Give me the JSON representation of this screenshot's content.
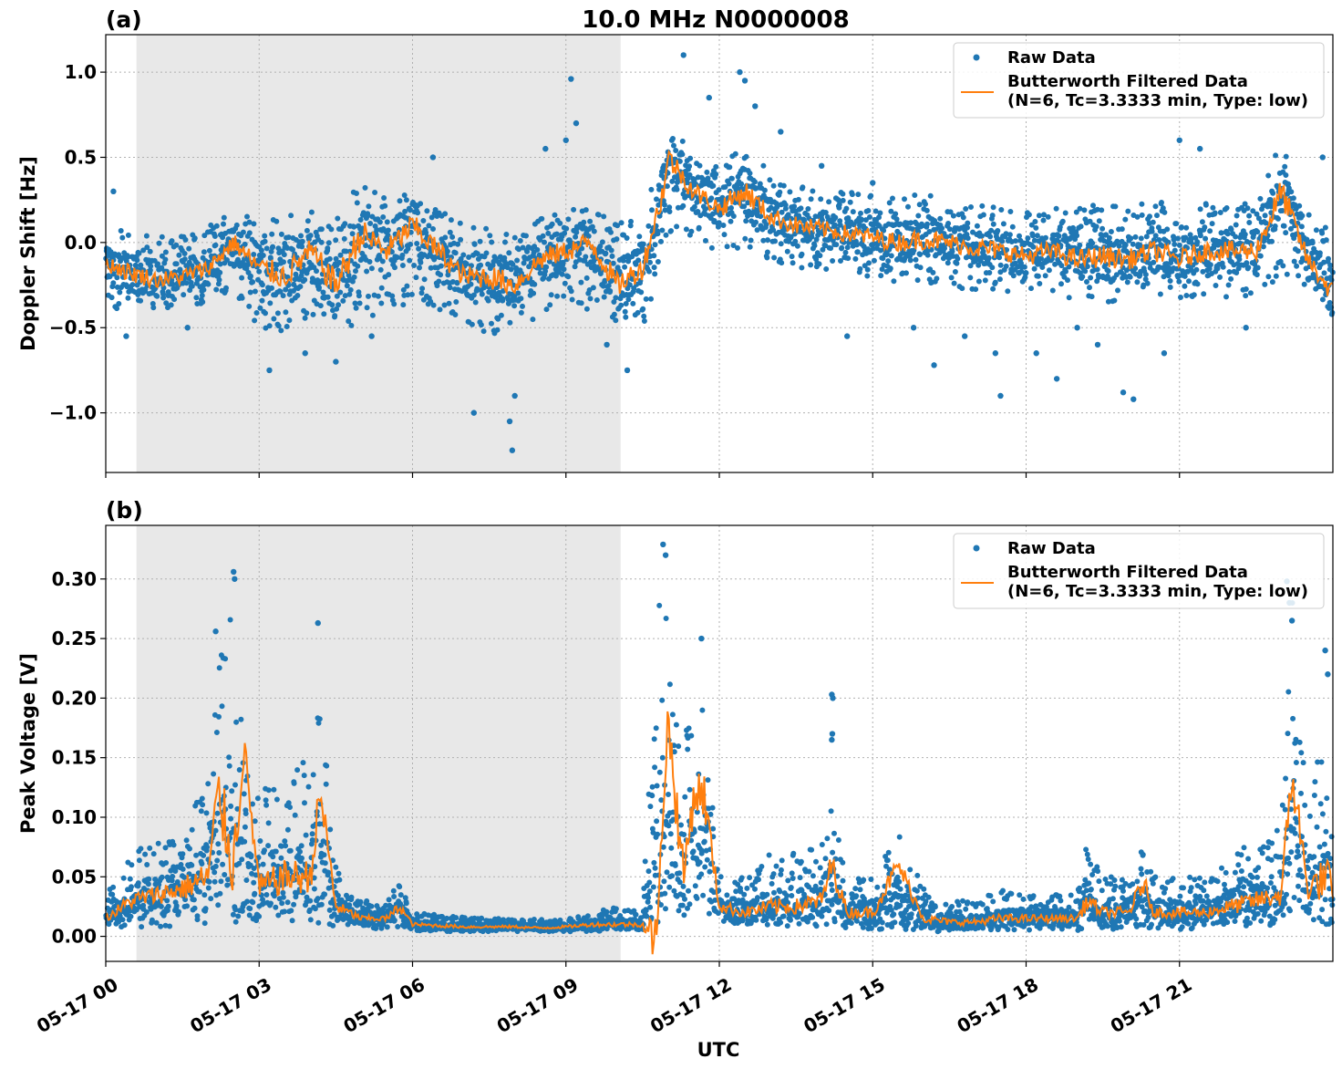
{
  "figure": {
    "title": "10.0 MHz N0000008",
    "xlabel": "UTC"
  },
  "colors": {
    "raw": "#1f77b4",
    "filtered": "#ff7f0e",
    "shade": "#e8e8e8",
    "grid": "#b0b0b0"
  },
  "chart_data": [
    {
      "type": "scatter",
      "panel_label": "(a)",
      "title": "10.0 MHz N0000008",
      "xlabel": "",
      "ylabel": "Doppler Shift [Hz]",
      "x_unit": "UTC hours on 05-17",
      "xlim": [
        0,
        24
      ],
      "ylim": [
        -1.35,
        1.22
      ],
      "x_ticks": [
        0,
        3,
        6,
        9,
        12,
        15,
        18,
        21
      ],
      "y_ticks": [
        -1.0,
        -0.5,
        0.0,
        0.5,
        1.0
      ],
      "y_tick_labels": [
        "−1.0",
        "−0.5",
        "0.0",
        "0.5",
        "1.0"
      ],
      "grid": true,
      "shaded_x_range": [
        0.6,
        10.07
      ],
      "legend": {
        "placement": "top-right",
        "entries": [
          "Raw Data",
          "Butterworth Filtered Data",
          "(N=6, Tc=3.3333 min, Type: low)"
        ]
      },
      "series": [
        {
          "name": "Raw Data",
          "style": "points",
          "x": [
            0.0,
            0.5,
            1.0,
            1.5,
            2.0,
            2.5,
            3.0,
            3.5,
            4.0,
            4.5,
            5.0,
            5.5,
            6.0,
            6.5,
            7.0,
            7.5,
            8.0,
            8.5,
            9.0,
            9.5,
            10.0,
            10.5,
            10.9,
            11.0,
            11.5,
            12.0,
            12.5,
            13.0,
            13.5,
            14.0,
            14.5,
            15.0,
            15.5,
            16.0,
            16.5,
            17.0,
            17.5,
            18.0,
            18.5,
            19.0,
            19.5,
            20.0,
            20.5,
            21.0,
            21.5,
            22.0,
            22.5,
            23.0,
            23.5,
            24.0
          ],
          "y": [
            -0.12,
            -0.18,
            -0.22,
            -0.2,
            -0.15,
            0.0,
            -0.15,
            -0.2,
            -0.05,
            -0.25,
            0.05,
            -0.05,
            0.1,
            -0.05,
            -0.2,
            -0.2,
            -0.25,
            -0.1,
            -0.05,
            0.0,
            -0.25,
            -0.15,
            0.3,
            0.5,
            0.3,
            0.2,
            0.3,
            0.15,
            0.1,
            0.08,
            0.05,
            0.03,
            0.0,
            0.02,
            0.0,
            -0.03,
            -0.05,
            -0.08,
            -0.05,
            -0.1,
            -0.08,
            -0.1,
            -0.05,
            -0.1,
            -0.05,
            -0.05,
            -0.05,
            0.3,
            -0.1,
            -0.3
          ],
          "spread_low": [
            -0.35,
            -0.45,
            -0.4,
            -0.4,
            -0.35,
            -0.3,
            -0.5,
            -0.55,
            -0.45,
            -0.6,
            -0.45,
            -0.4,
            -0.35,
            -0.4,
            -0.45,
            -0.55,
            -0.55,
            -0.45,
            -0.35,
            -0.4,
            -0.5,
            -0.5,
            -0.1,
            0.05,
            0.0,
            -0.05,
            -0.05,
            -0.1,
            -0.15,
            -0.15,
            -0.2,
            -0.2,
            -0.25,
            -0.25,
            -0.25,
            -0.3,
            -0.3,
            -0.3,
            -0.3,
            -0.35,
            -0.35,
            -0.35,
            -0.3,
            -0.35,
            -0.3,
            -0.35,
            -0.3,
            -0.2,
            -0.3,
            -0.5
          ],
          "spread_high": [
            0.1,
            0.05,
            0.05,
            0.05,
            0.1,
            0.2,
            0.15,
            0.15,
            0.2,
            0.2,
            0.35,
            0.25,
            0.3,
            0.2,
            0.1,
            0.1,
            0.05,
            0.15,
            0.2,
            0.25,
            0.15,
            0.1,
            0.6,
            0.7,
            0.55,
            0.45,
            0.6,
            0.4,
            0.35,
            0.3,
            0.3,
            0.3,
            0.25,
            0.3,
            0.25,
            0.25,
            0.2,
            0.2,
            0.2,
            0.2,
            0.25,
            0.2,
            0.25,
            0.2,
            0.25,
            0.2,
            0.25,
            0.6,
            0.2,
            0.1
          ],
          "outliers": [
            [
              0.15,
              0.3
            ],
            [
              0.4,
              -0.55
            ],
            [
              1.6,
              -0.5
            ],
            [
              3.2,
              -0.75
            ],
            [
              3.9,
              -0.65
            ],
            [
              4.5,
              -0.7
            ],
            [
              5.2,
              -0.55
            ],
            [
              6.4,
              0.5
            ],
            [
              7.2,
              -1.0
            ],
            [
              7.9,
              -1.05
            ],
            [
              7.95,
              -1.22
            ],
            [
              8.0,
              -0.9
            ],
            [
              8.6,
              0.55
            ],
            [
              9.1,
              0.96
            ],
            [
              9.2,
              0.7
            ],
            [
              9.0,
              0.6
            ],
            [
              9.8,
              -0.6
            ],
            [
              10.2,
              -0.75
            ],
            [
              11.3,
              1.1
            ],
            [
              11.8,
              0.85
            ],
            [
              12.4,
              1.0
            ],
            [
              12.5,
              0.95
            ],
            [
              12.7,
              0.8
            ],
            [
              13.2,
              0.65
            ],
            [
              14.0,
              0.45
            ],
            [
              14.5,
              -0.55
            ],
            [
              15.0,
              0.35
            ],
            [
              15.8,
              -0.5
            ],
            [
              16.2,
              -0.72
            ],
            [
              16.8,
              -0.55
            ],
            [
              17.4,
              -0.65
            ],
            [
              17.5,
              -0.9
            ],
            [
              18.2,
              -0.65
            ],
            [
              18.6,
              -0.8
            ],
            [
              19.0,
              -0.5
            ],
            [
              19.4,
              -0.6
            ],
            [
              19.9,
              -0.88
            ],
            [
              20.1,
              -0.92
            ],
            [
              20.7,
              -0.65
            ],
            [
              21.0,
              0.6
            ],
            [
              21.4,
              0.55
            ],
            [
              22.3,
              -0.5
            ],
            [
              23.0,
              0.82
            ],
            [
              23.8,
              0.5
            ]
          ]
        },
        {
          "name": "Butterworth Filtered Data",
          "style": "line",
          "x": [
            0.0,
            0.5,
            1.0,
            1.5,
            2.0,
            2.5,
            3.0,
            3.5,
            4.0,
            4.5,
            5.0,
            5.5,
            6.0,
            6.5,
            7.0,
            7.5,
            8.0,
            8.5,
            9.0,
            9.5,
            10.0,
            10.5,
            10.9,
            11.0,
            11.5,
            12.0,
            12.5,
            13.0,
            13.5,
            14.0,
            14.5,
            15.0,
            15.5,
            16.0,
            16.5,
            17.0,
            17.5,
            18.0,
            18.5,
            19.0,
            19.5,
            20.0,
            20.5,
            21.0,
            21.5,
            22.0,
            22.5,
            23.0,
            23.5,
            24.0
          ],
          "y": [
            -0.12,
            -0.18,
            -0.22,
            -0.2,
            -0.15,
            0.0,
            -0.15,
            -0.2,
            -0.05,
            -0.25,
            0.05,
            -0.05,
            0.1,
            -0.05,
            -0.2,
            -0.2,
            -0.25,
            -0.1,
            -0.05,
            0.0,
            -0.25,
            -0.15,
            0.3,
            0.5,
            0.3,
            0.2,
            0.3,
            0.15,
            0.1,
            0.08,
            0.05,
            0.03,
            0.0,
            0.02,
            0.0,
            -0.03,
            -0.05,
            -0.08,
            -0.05,
            -0.1,
            -0.08,
            -0.1,
            -0.05,
            -0.1,
            -0.05,
            -0.05,
            -0.05,
            0.3,
            -0.1,
            -0.3
          ]
        }
      ]
    },
    {
      "type": "scatter",
      "panel_label": "(b)",
      "title": "",
      "xlabel": "UTC",
      "ylabel": "Peak Voltage [V]",
      "x_unit": "UTC hours on 05-17",
      "xlim": [
        0,
        24
      ],
      "ylim": [
        -0.021,
        0.345
      ],
      "x_ticks": [
        0,
        3,
        6,
        9,
        12,
        15,
        18,
        21
      ],
      "x_tick_labels": [
        "05-17 00",
        "05-17 03",
        "05-17 06",
        "05-17 09",
        "05-17 12",
        "05-17 15",
        "05-17 18",
        "05-17 21"
      ],
      "y_ticks": [
        0.0,
        0.05,
        0.1,
        0.15,
        0.2,
        0.25,
        0.3
      ],
      "y_tick_labels": [
        "0.00",
        "0.05",
        "0.10",
        "0.15",
        "0.20",
        "0.25",
        "0.30"
      ],
      "grid": true,
      "shaded_x_range": [
        0.6,
        10.07
      ],
      "legend": {
        "placement": "top-right",
        "entries": [
          "Raw Data",
          "Butterworth Filtered Data",
          "(N=6, Tc=3.3333 min, Type: low)"
        ]
      },
      "series": [
        {
          "name": "Raw Data",
          "style": "points",
          "x": [
            0.0,
            0.5,
            1.0,
            1.5,
            2.0,
            2.2,
            2.5,
            2.7,
            3.0,
            3.5,
            4.0,
            4.2,
            4.5,
            5.0,
            5.5,
            5.75,
            6.0,
            6.5,
            7.0,
            7.5,
            8.0,
            8.5,
            9.0,
            9.5,
            10.0,
            10.5,
            10.85,
            11.0,
            11.3,
            11.5,
            11.7,
            12.0,
            12.5,
            13.0,
            13.5,
            14.0,
            14.2,
            14.5,
            15.0,
            15.5,
            16.0,
            16.5,
            17.0,
            17.5,
            18.0,
            18.5,
            19.0,
            19.2,
            19.5,
            20.0,
            20.3,
            20.5,
            21.0,
            21.5,
            22.0,
            22.5,
            23.0,
            23.2,
            23.5,
            23.9,
            24.0
          ],
          "y": [
            0.015,
            0.03,
            0.035,
            0.04,
            0.05,
            0.09,
            0.06,
            0.05,
            0.04,
            0.05,
            0.05,
            0.07,
            0.025,
            0.015,
            0.015,
            0.025,
            0.01,
            0.009,
            0.008,
            0.008,
            0.008,
            0.007,
            0.008,
            0.01,
            0.01,
            0.01,
            0.09,
            0.07,
            0.05,
            0.07,
            0.08,
            0.025,
            0.02,
            0.025,
            0.025,
            0.03,
            0.04,
            0.02,
            0.02,
            0.025,
            0.015,
            0.012,
            0.012,
            0.015,
            0.015,
            0.015,
            0.015,
            0.03,
            0.02,
            0.02,
            0.025,
            0.02,
            0.02,
            0.02,
            0.025,
            0.03,
            0.035,
            0.09,
            0.04,
            0.05,
            0.03
          ],
          "spread_low": [
            0.005,
            0.008,
            0.008,
            0.008,
            0.01,
            0.012,
            0.01,
            0.01,
            0.01,
            0.01,
            0.01,
            0.01,
            0.008,
            0.006,
            0.006,
            0.006,
            0.005,
            0.004,
            0.004,
            0.004,
            0.004,
            0.004,
            0.004,
            0.004,
            0.005,
            0.005,
            0.01,
            0.01,
            0.008,
            0.01,
            0.01,
            0.005,
            0.006,
            0.008,
            0.008,
            0.008,
            0.008,
            0.006,
            0.005,
            0.006,
            0.004,
            0.004,
            0.004,
            0.005,
            0.005,
            0.005,
            0.005,
            0.006,
            0.006,
            0.006,
            0.006,
            0.006,
            0.006,
            0.006,
            0.008,
            0.008,
            0.01,
            0.01,
            0.01,
            0.01,
            0.01
          ],
          "spread_high": [
            0.035,
            0.07,
            0.08,
            0.1,
            0.14,
            0.25,
            0.3,
            0.15,
            0.12,
            0.14,
            0.15,
            0.2,
            0.06,
            0.03,
            0.03,
            0.05,
            0.02,
            0.018,
            0.016,
            0.015,
            0.015,
            0.014,
            0.015,
            0.02,
            0.025,
            0.025,
            0.32,
            0.25,
            0.18,
            0.2,
            0.2,
            0.05,
            0.05,
            0.07,
            0.07,
            0.08,
            0.12,
            0.05,
            0.05,
            0.09,
            0.04,
            0.03,
            0.03,
            0.04,
            0.035,
            0.035,
            0.035,
            0.08,
            0.05,
            0.05,
            0.09,
            0.05,
            0.05,
            0.05,
            0.07,
            0.08,
            0.1,
            0.29,
            0.1,
            0.2,
            0.08
          ],
          "outliers": [
            [
              2.15,
              0.256
            ],
            [
              2.5,
              0.306
            ],
            [
              2.52,
              0.3
            ],
            [
              4.15,
              0.263
            ],
            [
              10.9,
              0.329
            ],
            [
              10.95,
              0.32
            ],
            [
              11.65,
              0.25
            ],
            [
              14.2,
              0.203
            ],
            [
              14.22,
              0.2
            ],
            [
              14.21,
              0.17
            ],
            [
              14.2,
              0.165
            ],
            [
              23.1,
              0.298
            ],
            [
              23.15,
              0.28
            ],
            [
              23.2,
              0.265
            ],
            [
              23.85,
              0.24
            ],
            [
              23.9,
              0.22
            ]
          ]
        },
        {
          "name": "Butterworth Filtered Data",
          "style": "line",
          "x": [
            0.0,
            0.5,
            1.0,
            1.5,
            2.0,
            2.2,
            2.5,
            2.7,
            3.0,
            3.5,
            4.0,
            4.2,
            4.5,
            5.0,
            5.5,
            5.75,
            6.0,
            6.5,
            7.0,
            7.5,
            8.0,
            8.5,
            9.0,
            9.5,
            10.0,
            10.5,
            10.8,
            10.85,
            11.0,
            11.3,
            11.5,
            11.7,
            12.0,
            12.5,
            13.0,
            13.5,
            14.0,
            14.2,
            14.5,
            15.0,
            15.5,
            16.0,
            16.5,
            17.0,
            17.5,
            18.0,
            18.5,
            19.0,
            19.2,
            19.5,
            20.0,
            20.3,
            20.5,
            21.0,
            21.5,
            22.0,
            22.5,
            23.0,
            23.2,
            23.5,
            23.9,
            24.0
          ],
          "y": [
            0.015,
            0.03,
            0.035,
            0.04,
            0.05,
            0.12,
            0.06,
            0.16,
            0.04,
            0.05,
            0.05,
            0.12,
            0.025,
            0.015,
            0.015,
            0.025,
            0.01,
            0.009,
            0.008,
            0.008,
            0.008,
            0.007,
            0.008,
            0.01,
            0.01,
            0.01,
            -0.005,
            0.09,
            0.18,
            0.05,
            0.12,
            0.12,
            0.025,
            0.02,
            0.025,
            0.025,
            0.03,
            0.06,
            0.02,
            0.02,
            0.06,
            0.015,
            0.012,
            0.012,
            0.015,
            0.015,
            0.015,
            0.015,
            0.03,
            0.02,
            0.02,
            0.045,
            0.02,
            0.02,
            0.02,
            0.025,
            0.03,
            0.035,
            0.14,
            0.04,
            0.05,
            0.03
          ]
        }
      ]
    }
  ]
}
